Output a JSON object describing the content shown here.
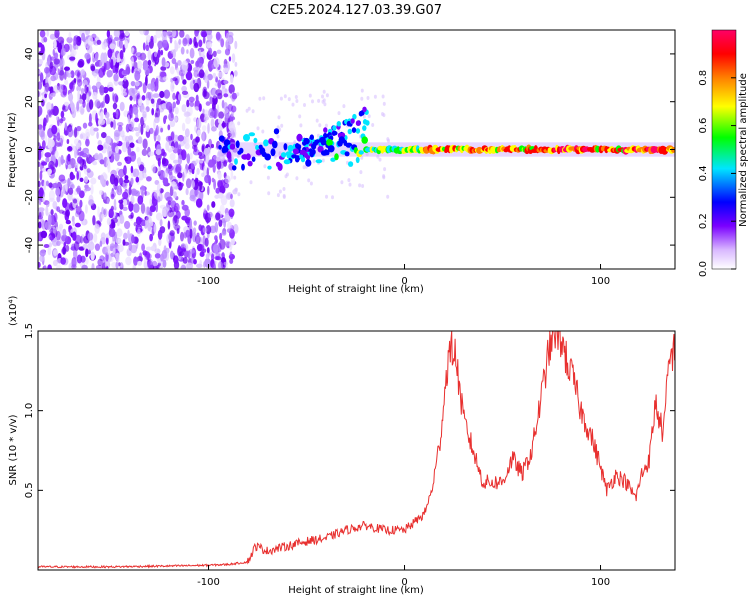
{
  "title": "C2E5.2024.127.03.39.G07",
  "chart_data": [
    {
      "type": "heatmap",
      "xlabel": "Height of straight line (km)",
      "ylabel": "Frequency (Hz)",
      "xlim": [
        -187,
        138
      ],
      "ylim": [
        -50,
        50
      ],
      "x_ticks": [
        -100,
        0,
        100
      ],
      "x_tick_labels": [
        "-100",
        "0",
        "100"
      ],
      "y_ticks": [
        -40,
        -20,
        0,
        20,
        40
      ],
      "y_tick_labels": [
        "-40",
        "-20",
        "0",
        "20",
        "40"
      ],
      "colorbar": {
        "label": "Normalized spectral amplitude",
        "range": [
          0,
          1
        ],
        "ticks": [
          0.0,
          0.2,
          0.4,
          0.6,
          0.8
        ],
        "tick_labels": [
          "0.0",
          "0.2",
          "0.4",
          "0.6",
          "0.8"
        ],
        "colors": [
          "#ffffff",
          "#d9b8ff",
          "#7a00ff",
          "#0000ff",
          "#00e5ff",
          "#00ff00",
          "#ffff00",
          "#ff8000",
          "#ff0000",
          "#ff0066"
        ]
      },
      "regions": {
        "noise_band_x": [
          -187,
          -86
        ],
        "signal_x_start": -95,
        "signal_frequency_hz": 0
      },
      "ridge": {
        "x": [
          -95,
          -80,
          -70,
          -60,
          -50,
          -40,
          -30,
          -20,
          0,
          20,
          40,
          60,
          80,
          100,
          120,
          138
        ],
        "amplitude": [
          0.3,
          0.35,
          0.4,
          0.35,
          0.4,
          0.45,
          0.5,
          0.6,
          0.7,
          0.85,
          0.8,
          0.85,
          0.9,
          0.85,
          0.88,
          0.9
        ]
      },
      "grid": false
    },
    {
      "type": "line",
      "xlabel": "Height of straight line (km)",
      "ylabel": "SNR (10 * v/v)",
      "y_scale_label": "(x10⁴)",
      "xlim": [
        -187,
        138
      ],
      "ylim": [
        0,
        1.5
      ],
      "x_ticks": [
        -100,
        0,
        100
      ],
      "x_tick_labels": [
        "-100",
        "0",
        "100"
      ],
      "y_ticks": [
        0.5,
        1.0,
        1.5
      ],
      "y_tick_labels": [
        "0.5",
        "1.0",
        "1.5"
      ],
      "color": "#e8302f",
      "grid": false,
      "series": [
        {
          "x": [
            -187,
            -150,
            -120,
            -100,
            -90,
            -80,
            -76,
            -70,
            -60,
            -50,
            -40,
            -30,
            -20,
            -10,
            0,
            10,
            14,
            18,
            22,
            24,
            26,
            30,
            35,
            40,
            50,
            55,
            60,
            65,
            70,
            74,
            77,
            80,
            83,
            86,
            90,
            95,
            100,
            103,
            108,
            113,
            118,
            121,
            125,
            128,
            132,
            135,
            138
          ],
          "y": [
            0.02,
            0.02,
            0.025,
            0.03,
            0.035,
            0.05,
            0.15,
            0.12,
            0.15,
            0.18,
            0.2,
            0.25,
            0.28,
            0.25,
            0.25,
            0.35,
            0.5,
            0.8,
            1.3,
            1.4,
            1.35,
            0.95,
            0.75,
            0.55,
            0.55,
            0.7,
            0.6,
            0.75,
            1.1,
            1.4,
            1.5,
            1.45,
            1.3,
            1.2,
            1.0,
            0.85,
            0.65,
            0.5,
            0.6,
            0.55,
            0.45,
            0.6,
            0.7,
            1.05,
            0.85,
            1.3,
            1.4
          ]
        }
      ]
    }
  ]
}
